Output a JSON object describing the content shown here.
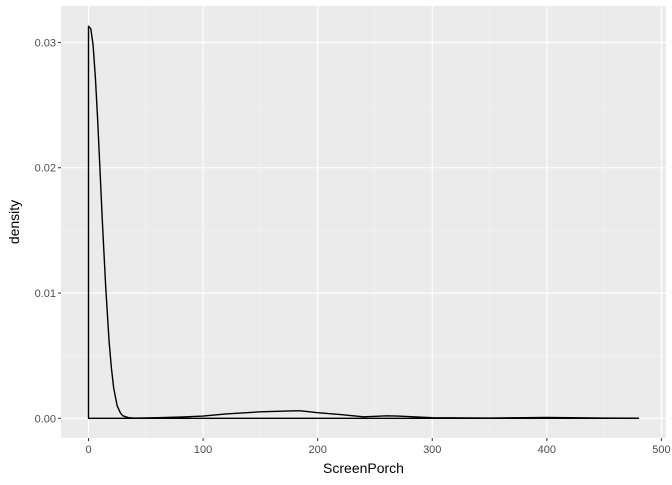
{
  "chart_data": {
    "type": "area",
    "title": "",
    "xlabel": "ScreenPorch",
    "ylabel": "density",
    "xlim": [
      -24,
      504
    ],
    "ylim": [
      -0.00157,
      0.03291
    ],
    "x_ticks": [
      0,
      100,
      200,
      300,
      400,
      500
    ],
    "x_tick_labels": [
      "0",
      "100",
      "200",
      "300",
      "400",
      "500"
    ],
    "y_ticks": [
      0.0,
      0.01,
      0.02,
      0.03
    ],
    "y_tick_labels": [
      "0.00",
      "0.01",
      "0.02",
      "0.03"
    ],
    "grid": true,
    "legend": "none",
    "series": [
      {
        "x": [
          0,
          2,
          4,
          6,
          8,
          10,
          12,
          15,
          18,
          20,
          22,
          25,
          28,
          30,
          35,
          40,
          45,
          50,
          60,
          80,
          100,
          120,
          150,
          180,
          185,
          200,
          220,
          240,
          260,
          270,
          300,
          350,
          380,
          400,
          450,
          480
        ],
        "y": [
          0.0313,
          0.0311,
          0.0298,
          0.0272,
          0.0238,
          0.0199,
          0.0159,
          0.0105,
          0.0061,
          0.004,
          0.0024,
          0.001,
          0.0004,
          0.0002,
          5e-05,
          2e-05,
          2e-05,
          3e-05,
          5e-05,
          0.0001,
          0.00018,
          0.00035,
          0.00052,
          0.0006,
          0.0006,
          0.00045,
          0.0003,
          0.00012,
          0.0002,
          0.00018,
          5e-05,
          2e-05,
          5e-05,
          7e-05,
          2e-05,
          1e-05
        ]
      }
    ],
    "colors": {
      "panel_background": "#ebebeb",
      "grid_major": "#ffffff",
      "grid_minor": "#f5f5f5",
      "line": "#000000",
      "tick_label": "#4d4d4d"
    }
  }
}
